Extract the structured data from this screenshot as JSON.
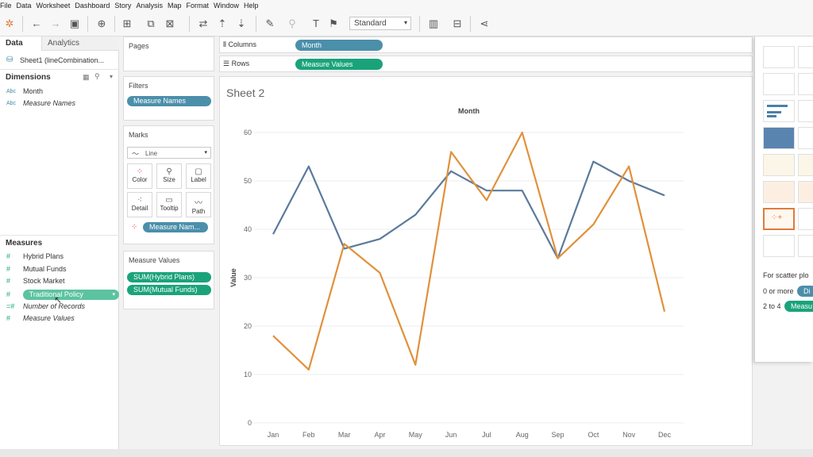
{
  "menu": [
    "File",
    "Data",
    "Worksheet",
    "Dashboard",
    "Story",
    "Analysis",
    "Map",
    "Format",
    "Window",
    "Help"
  ],
  "toolbar": {
    "fit_value": "Standard"
  },
  "leftpane": {
    "tabs": [
      "Data",
      "Analytics"
    ],
    "datasource": "Sheet1 (lineCombination...",
    "dimensions_header": "Dimensions",
    "dimensions": [
      {
        "type": "Abc",
        "label": "Month",
        "italic": false
      },
      {
        "type": "Abc",
        "label": "Measure Names",
        "italic": true
      }
    ],
    "measures_header": "Measures",
    "measures": [
      {
        "type": "#",
        "label": "Hybrid Plans",
        "italic": false
      },
      {
        "type": "#",
        "label": "Mutual Funds",
        "italic": false
      },
      {
        "type": "#",
        "label": "Stock Market",
        "italic": false
      },
      {
        "type": "#",
        "label": "Traditional Policy",
        "italic": false,
        "selected": true
      },
      {
        "type": "=#",
        "label": "Number of Records",
        "italic": true
      },
      {
        "type": "#",
        "label": "Measure Values",
        "italic": true
      }
    ]
  },
  "cards": {
    "pages": "Pages",
    "filters": "Filters",
    "filter_pill": "Measure Names",
    "marks": "Marks",
    "mark_type": "Line",
    "mark_buttons": [
      "Color",
      "Size",
      "Label",
      "Detail",
      "Tooltip",
      "Path"
    ],
    "marks_pill": "Measure Nam...",
    "measure_values": "Measure Values",
    "mv_pills": [
      "SUM(Hybrid Plans)",
      "SUM(Mutual Funds)"
    ]
  },
  "shelves": {
    "columns_label": "Columns",
    "columns_pill": "Month",
    "rows_label": "Rows",
    "rows_pill": "Measure Values"
  },
  "view": {
    "sheet_title": "Sheet 2"
  },
  "chart_data": {
    "type": "line",
    "title": "Month",
    "xlabel": "",
    "ylabel": "Value",
    "categories": [
      "Jan",
      "Feb",
      "Mar",
      "Apr",
      "May",
      "Jun",
      "Jul",
      "Aug",
      "Sep",
      "Oct",
      "Nov",
      "Dec"
    ],
    "ylim": [
      0,
      60
    ],
    "yticks": [
      0,
      10,
      20,
      30,
      40,
      50,
      60
    ],
    "grid": true,
    "series": [
      {
        "color": "#5b7a9c",
        "values": [
          39,
          53,
          36,
          38,
          43,
          52,
          48,
          48,
          34,
          54,
          50,
          47
        ]
      },
      {
        "color": "#e0913b",
        "values": [
          18,
          11,
          37,
          31,
          12,
          56,
          46,
          60,
          34,
          41,
          53,
          23
        ]
      }
    ]
  },
  "showme": {
    "hint_title": "For scatter plo",
    "line1": "0 or more",
    "pill1": "Di",
    "line2": "2 to 4",
    "pill2": "Measu"
  },
  "colors": {
    "dimension_pill": "#4b8faa",
    "measure_pill": "#1aa37a"
  }
}
